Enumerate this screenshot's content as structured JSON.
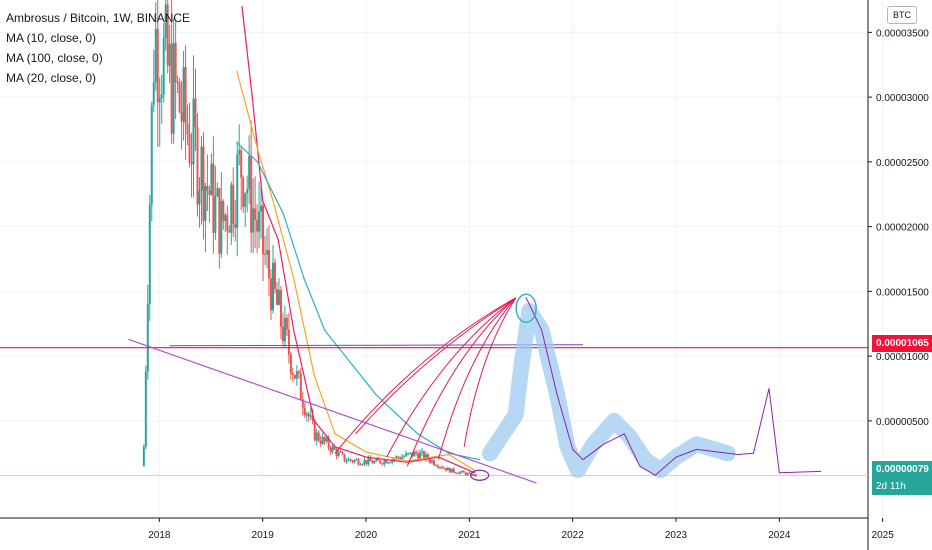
{
  "chart_data": {
    "type": "candlestick",
    "legend": [
      "Ambrosus / Bitcoin, 1W, BINANCE",
      "MA (10, close, 0)",
      "MA (100, close, 0)",
      "MA (20, close, 0)"
    ],
    "currency": "BTC",
    "y_ticks": [
      "0.00003500",
      "0.00003000",
      "0.00002500",
      "0.00002000",
      "0.00001500",
      "0.00001000",
      "0.00000500"
    ],
    "y_tick_values": [
      3.5e-05,
      3e-05,
      2.5e-05,
      2e-05,
      1.5e-05,
      1e-05,
      5e-06
    ],
    "x_ticks": [
      "2018",
      "2019",
      "2020",
      "2021",
      "2022",
      "2023",
      "2024",
      "2025"
    ],
    "ylim": [
      -2.5e-06,
      3.75e-05
    ],
    "horizontal_line_value": 1.065e-05,
    "horizontal_line_label": "0.00001065",
    "last_price_label": "0.00000079",
    "countdown_label": "2d 11h",
    "colors": {
      "up": "#26a69a",
      "down": "#ef5350",
      "ma10": "#e91e63",
      "ma20": "#f5a623",
      "ma100": "#2ab0c5",
      "hline": "#f0143c",
      "trend": "#b24fd8",
      "highlight": "#9ecbf0",
      "drawing": "#e8194f"
    },
    "candles_approx": [
      {
        "t": 2017.85,
        "o": 1.5e-06,
        "h": 1e-05,
        "l": 8e-07,
        "c": 3e-06
      },
      {
        "t": 2017.9,
        "o": 3e-06,
        "h": 2.5e-05,
        "l": 2e-06,
        "c": 2e-05
      },
      {
        "t": 2017.95,
        "o": 2e-05,
        "h": 3.75e-05,
        "l": 1.5e-05,
        "c": 3.5e-05
      },
      {
        "t": 2018.6,
        "o": 3.5e-05,
        "h": 3.75e-05,
        "l": 1.8e-05,
        "c": 2e-05
      },
      {
        "t": 2018.8,
        "o": 2e-05,
        "h": 3e-05,
        "l": 1.5e-05,
        "c": 2.5e-05
      },
      {
        "t": 2019.1,
        "o": 1.8e-05,
        "h": 2.1e-05,
        "l": 1.3e-05,
        "c": 1.5e-05
      },
      {
        "t": 2019.3,
        "o": 1.5e-05,
        "h": 1.6e-05,
        "l": 8e-06,
        "c": 9e-06
      },
      {
        "t": 2019.5,
        "o": 7e-06,
        "h": 8e-06,
        "l": 3e-06,
        "c": 4e-06
      },
      {
        "t": 2019.8,
        "o": 3e-06,
        "h": 4.5e-06,
        "l": 1.5e-06,
        "c": 2e-06
      },
      {
        "t": 2020.1,
        "o": 2.2e-06,
        "h": 3e-06,
        "l": 1.5e-06,
        "c": 1.8e-06
      },
      {
        "t": 2020.5,
        "o": 1.5e-06,
        "h": 3e-06,
        "l": 1e-06,
        "c": 2.5e-06
      },
      {
        "t": 2020.8,
        "o": 2e-06,
        "h": 2.5e-06,
        "l": 1e-06,
        "c": 1.2e-06
      },
      {
        "t": 2021.05,
        "o": 1e-06,
        "h": 1.4e-06,
        "l": 6e-07,
        "c": 7.9e-07
      }
    ]
  }
}
